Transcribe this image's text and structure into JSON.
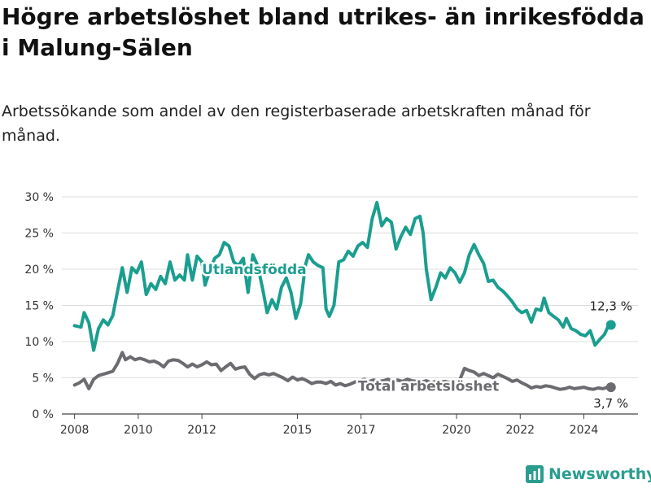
{
  "title": "Högre arbetslöshet bland utrikes- än inrikesfödda i Malung-Sälen",
  "subtitle": "Arbetssökande som andel av den registerbaserade arbetskraften månad för månad.",
  "brand": {
    "name": "Newsworthy",
    "icon": "bar-chart-logo-icon"
  },
  "chart_data": {
    "type": "line",
    "ylim": [
      0,
      30
    ],
    "yticks": [
      0,
      5,
      10,
      15,
      20,
      25,
      30
    ],
    "ytick_labels": [
      "0 %",
      "5 %",
      "10 %",
      "15 %",
      "20 %",
      "25 %",
      "30 %"
    ],
    "xticks": [
      2008,
      2010,
      2012,
      2015,
      2017,
      2020,
      2022,
      2024
    ],
    "xtick_labels": [
      "2008",
      "2010",
      "2012",
      "2015",
      "2017",
      "2020",
      "2022",
      "2024"
    ],
    "xlim": [
      2007.6,
      2025.7
    ],
    "grid": "horizontal",
    "series": [
      {
        "name": "Utlandsfödda",
        "color": "#1a9e8f",
        "end_label": "12,3 %",
        "points": [
          [
            2008.0,
            12.2
          ],
          [
            2008.2,
            12.0
          ],
          [
            2008.3,
            14.0
          ],
          [
            2008.45,
            12.6
          ],
          [
            2008.6,
            8.8
          ],
          [
            2008.75,
            11.8
          ],
          [
            2008.9,
            13.0
          ],
          [
            2009.05,
            12.3
          ],
          [
            2009.2,
            13.6
          ],
          [
            2009.35,
            17.0
          ],
          [
            2009.5,
            20.2
          ],
          [
            2009.65,
            16.8
          ],
          [
            2009.8,
            20.2
          ],
          [
            2009.95,
            19.5
          ],
          [
            2010.1,
            21.0
          ],
          [
            2010.25,
            16.5
          ],
          [
            2010.4,
            18.0
          ],
          [
            2010.55,
            17.2
          ],
          [
            2010.7,
            19.0
          ],
          [
            2010.85,
            18.0
          ],
          [
            2011.0,
            21.0
          ],
          [
            2011.15,
            18.5
          ],
          [
            2011.3,
            19.2
          ],
          [
            2011.45,
            18.5
          ],
          [
            2011.55,
            22.0
          ],
          [
            2011.7,
            18.5
          ],
          [
            2011.85,
            21.8
          ],
          [
            2012.0,
            21.0
          ],
          [
            2012.1,
            17.8
          ],
          [
            2012.25,
            19.8
          ],
          [
            2012.4,
            21.5
          ],
          [
            2012.55,
            22.0
          ],
          [
            2012.7,
            23.7
          ],
          [
            2012.85,
            23.2
          ],
          [
            2013.0,
            21.0
          ],
          [
            2013.15,
            20.5
          ],
          [
            2013.3,
            21.5
          ],
          [
            2013.45,
            16.8
          ],
          [
            2013.6,
            22.0
          ],
          [
            2013.75,
            20.5
          ],
          [
            2013.9,
            17.5
          ],
          [
            2014.05,
            14.0
          ],
          [
            2014.2,
            15.8
          ],
          [
            2014.35,
            14.5
          ],
          [
            2014.5,
            17.5
          ],
          [
            2014.65,
            18.8
          ],
          [
            2014.8,
            16.8
          ],
          [
            2014.95,
            13.2
          ],
          [
            2015.1,
            15.2
          ],
          [
            2015.25,
            20.5
          ],
          [
            2015.35,
            22.0
          ],
          [
            2015.5,
            21.0
          ],
          [
            2015.65,
            20.5
          ],
          [
            2015.8,
            20.2
          ],
          [
            2015.9,
            14.5
          ],
          [
            2016.0,
            13.5
          ],
          [
            2016.15,
            15.0
          ],
          [
            2016.3,
            21.0
          ],
          [
            2016.45,
            21.3
          ],
          [
            2016.6,
            22.5
          ],
          [
            2016.75,
            21.8
          ],
          [
            2016.9,
            23.2
          ],
          [
            2017.05,
            23.7
          ],
          [
            2017.2,
            23.0
          ],
          [
            2017.35,
            27.0
          ],
          [
            2017.5,
            29.2
          ],
          [
            2017.65,
            26.0
          ],
          [
            2017.8,
            27.0
          ],
          [
            2017.95,
            26.5
          ],
          [
            2018.1,
            22.8
          ],
          [
            2018.25,
            24.5
          ],
          [
            2018.4,
            25.8
          ],
          [
            2018.55,
            24.8
          ],
          [
            2018.7,
            27.0
          ],
          [
            2018.85,
            27.3
          ],
          [
            2018.95,
            25.0
          ],
          [
            2019.05,
            20.0
          ],
          [
            2019.2,
            15.8
          ],
          [
            2019.35,
            17.5
          ],
          [
            2019.5,
            19.5
          ],
          [
            2019.65,
            18.8
          ],
          [
            2019.8,
            20.2
          ],
          [
            2019.95,
            19.5
          ],
          [
            2020.1,
            18.2
          ],
          [
            2020.25,
            19.5
          ],
          [
            2020.4,
            22.0
          ],
          [
            2020.55,
            23.4
          ],
          [
            2020.7,
            22.0
          ],
          [
            2020.85,
            20.8
          ],
          [
            2021.0,
            18.3
          ],
          [
            2021.15,
            18.5
          ],
          [
            2021.3,
            17.5
          ],
          [
            2021.45,
            17.0
          ],
          [
            2021.6,
            16.3
          ],
          [
            2021.75,
            15.5
          ],
          [
            2021.9,
            14.5
          ],
          [
            2022.05,
            14.0
          ],
          [
            2022.2,
            14.3
          ],
          [
            2022.35,
            12.7
          ],
          [
            2022.5,
            14.5
          ],
          [
            2022.65,
            14.3
          ],
          [
            2022.75,
            16.0
          ],
          [
            2022.9,
            14.0
          ],
          [
            2023.05,
            13.5
          ],
          [
            2023.2,
            13.0
          ],
          [
            2023.35,
            12.0
          ],
          [
            2023.45,
            13.2
          ],
          [
            2023.6,
            11.8
          ],
          [
            2023.75,
            11.5
          ],
          [
            2023.9,
            11.0
          ],
          [
            2024.05,
            10.8
          ],
          [
            2024.2,
            11.5
          ],
          [
            2024.35,
            9.5
          ],
          [
            2024.5,
            10.3
          ],
          [
            2024.65,
            11.0
          ],
          [
            2024.75,
            12.0
          ],
          [
            2024.85,
            12.3
          ]
        ]
      },
      {
        "name": "Total arbetslöshet",
        "color": "#6b6b70",
        "end_label": "3,7 %",
        "points": [
          [
            2008.0,
            4.0
          ],
          [
            2008.15,
            4.3
          ],
          [
            2008.3,
            4.8
          ],
          [
            2008.45,
            3.5
          ],
          [
            2008.6,
            4.8
          ],
          [
            2008.75,
            5.3
          ],
          [
            2008.9,
            5.5
          ],
          [
            2009.05,
            5.7
          ],
          [
            2009.2,
            5.9
          ],
          [
            2009.35,
            7.0
          ],
          [
            2009.5,
            8.5
          ],
          [
            2009.6,
            7.5
          ],
          [
            2009.75,
            7.9
          ],
          [
            2009.9,
            7.5
          ],
          [
            2010.05,
            7.7
          ],
          [
            2010.2,
            7.5
          ],
          [
            2010.35,
            7.2
          ],
          [
            2010.5,
            7.3
          ],
          [
            2010.65,
            7.0
          ],
          [
            2010.8,
            6.5
          ],
          [
            2010.95,
            7.3
          ],
          [
            2011.1,
            7.5
          ],
          [
            2011.25,
            7.4
          ],
          [
            2011.4,
            7.0
          ],
          [
            2011.55,
            6.5
          ],
          [
            2011.7,
            6.9
          ],
          [
            2011.85,
            6.5
          ],
          [
            2012.0,
            6.8
          ],
          [
            2012.15,
            7.2
          ],
          [
            2012.3,
            6.8
          ],
          [
            2012.45,
            6.9
          ],
          [
            2012.6,
            6.0
          ],
          [
            2012.75,
            6.5
          ],
          [
            2012.9,
            7.0
          ],
          [
            2013.05,
            6.2
          ],
          [
            2013.2,
            6.4
          ],
          [
            2013.35,
            6.5
          ],
          [
            2013.5,
            5.5
          ],
          [
            2013.65,
            4.9
          ],
          [
            2013.8,
            5.4
          ],
          [
            2013.95,
            5.6
          ],
          [
            2014.1,
            5.4
          ],
          [
            2014.25,
            5.6
          ],
          [
            2014.4,
            5.3
          ],
          [
            2014.55,
            5.0
          ],
          [
            2014.7,
            4.6
          ],
          [
            2014.85,
            5.1
          ],
          [
            2015.0,
            4.7
          ],
          [
            2015.15,
            4.9
          ],
          [
            2015.3,
            4.6
          ],
          [
            2015.45,
            4.2
          ],
          [
            2015.6,
            4.4
          ],
          [
            2015.75,
            4.4
          ],
          [
            2015.9,
            4.2
          ],
          [
            2016.05,
            4.5
          ],
          [
            2016.2,
            4.0
          ],
          [
            2016.35,
            4.2
          ],
          [
            2016.5,
            3.9
          ],
          [
            2016.65,
            4.1
          ],
          [
            2016.8,
            4.4
          ],
          [
            2016.95,
            4.6
          ],
          [
            2017.1,
            4.8
          ],
          [
            2017.25,
            4.5
          ],
          [
            2017.4,
            4.7
          ],
          [
            2017.55,
            4.5
          ],
          [
            2017.7,
            4.6
          ],
          [
            2017.85,
            4.8
          ],
          [
            2018.0,
            4.5
          ],
          [
            2018.15,
            4.7
          ],
          [
            2018.3,
            4.5
          ],
          [
            2018.45,
            4.8
          ],
          [
            2018.6,
            4.6
          ],
          [
            2018.75,
            4.5
          ],
          [
            2018.9,
            4.4
          ],
          [
            2019.05,
            4.6
          ],
          [
            2019.2,
            4.3
          ],
          [
            2019.35,
            4.5
          ],
          [
            2019.5,
            4.4
          ],
          [
            2019.65,
            4.5
          ],
          [
            2019.8,
            4.3
          ],
          [
            2019.95,
            4.5
          ],
          [
            2020.1,
            4.7
          ],
          [
            2020.25,
            6.3
          ],
          [
            2020.4,
            6.0
          ],
          [
            2020.55,
            5.8
          ],
          [
            2020.7,
            5.3
          ],
          [
            2020.85,
            5.6
          ],
          [
            2021.0,
            5.3
          ],
          [
            2021.15,
            5.0
          ],
          [
            2021.3,
            5.5
          ],
          [
            2021.45,
            5.2
          ],
          [
            2021.6,
            4.9
          ],
          [
            2021.75,
            4.5
          ],
          [
            2021.9,
            4.7
          ],
          [
            2022.05,
            4.3
          ],
          [
            2022.2,
            4.0
          ],
          [
            2022.35,
            3.6
          ],
          [
            2022.5,
            3.8
          ],
          [
            2022.65,
            3.7
          ],
          [
            2022.8,
            3.9
          ],
          [
            2022.95,
            3.8
          ],
          [
            2023.1,
            3.6
          ],
          [
            2023.25,
            3.4
          ],
          [
            2023.4,
            3.5
          ],
          [
            2023.55,
            3.7
          ],
          [
            2023.7,
            3.5
          ],
          [
            2023.85,
            3.6
          ],
          [
            2024.0,
            3.7
          ],
          [
            2024.15,
            3.5
          ],
          [
            2024.3,
            3.4
          ],
          [
            2024.45,
            3.6
          ],
          [
            2024.6,
            3.5
          ],
          [
            2024.75,
            3.7
          ],
          [
            2024.85,
            3.7
          ]
        ]
      }
    ]
  }
}
